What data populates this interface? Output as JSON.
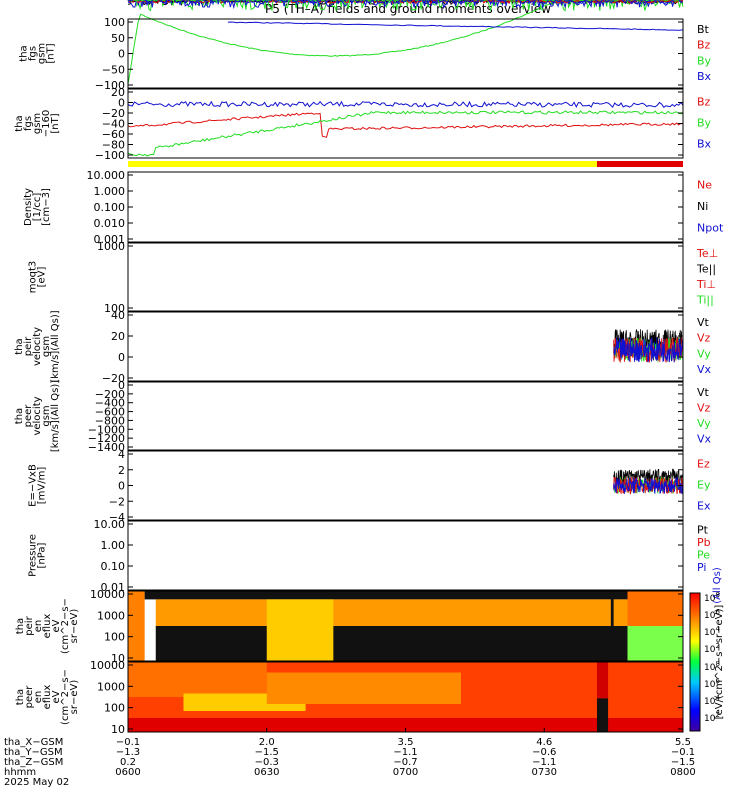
{
  "title": "P5 (TH–A) fields and ground moments overview",
  "colors": {
    "black": "#000000",
    "red": "#e01010",
    "green": "#22dd22",
    "blue": "#1010d0",
    "yellow": "#ffff00",
    "barred": "#e00000"
  },
  "chart_data": [
    {
      "id": "p1",
      "type": "line",
      "ylabel": [
        "tha",
        "fgs",
        "gsm",
        "[nT]"
      ],
      "yticks": [
        "100",
        "50",
        "0",
        "−50",
        "−100"
      ],
      "ylim": [
        -100,
        100
      ],
      "legend": [
        {
          "label": "Bt",
          "color": "black"
        },
        {
          "label": "Bz",
          "color": "red"
        },
        {
          "label": "By",
          "color": "green"
        },
        {
          "label": "Bx",
          "color": "blue"
        }
      ]
    },
    {
      "id": "p2",
      "type": "line",
      "ylabel": [
        "tha",
        "fgs",
        "gsm",
        "−160",
        "[nT]"
      ],
      "yticks": [
        "20",
        "0",
        "−20",
        "−40",
        "−60",
        "−80",
        "−100"
      ],
      "ylim": [
        -110,
        25
      ],
      "legend": [
        {
          "label": "Bz",
          "color": "red"
        },
        {
          "label": "By",
          "color": "green"
        },
        {
          "label": "Bx",
          "color": "blue"
        }
      ]
    },
    {
      "id": "p3",
      "type": "line",
      "ylabel": [
        "Density",
        "[1/cc]",
        "[cm−3]"
      ],
      "yticks": [
        "10.000",
        "1.000",
        "0.100",
        "0.010",
        "0.001"
      ],
      "scale": "log",
      "legend": [
        {
          "label": "Ne",
          "color": "red"
        },
        {
          "label": "Ni",
          "color": "black"
        },
        {
          "label": "Npot",
          "color": "blue"
        }
      ]
    },
    {
      "id": "p4",
      "type": "line",
      "ylabel": [
        "moqt3",
        "[eV]"
      ],
      "yticks": [
        "1000",
        "100"
      ],
      "scale": "log",
      "legend": [
        {
          "label": "Te⊥",
          "color": "red"
        },
        {
          "label": "Te||",
          "color": "black"
        },
        {
          "label": "Ti⊥",
          "color": "red"
        },
        {
          "label": "Ti||",
          "color": "green"
        }
      ]
    },
    {
      "id": "p5",
      "type": "line",
      "ylabel": [
        "tha",
        "peir",
        "velocity",
        "gsm",
        "[km/s](All Qs)]"
      ],
      "yticks": [
        "40",
        "20",
        "0",
        "−20"
      ],
      "ylim": [
        -40,
        40
      ],
      "legend": [
        {
          "label": "Vt",
          "color": "black"
        },
        {
          "label": "Vz",
          "color": "red"
        },
        {
          "label": "Vy",
          "color": "green"
        },
        {
          "label": "Vx",
          "color": "blue"
        }
      ]
    },
    {
      "id": "p6",
      "type": "line",
      "ylabel": [
        "tha",
        "peer",
        "velocity",
        "gsm",
        "[km/s](All Qs)]"
      ],
      "yticks": [
        "0",
        "−200",
        "−400",
        "−600",
        "−800",
        "−1000",
        "−1200",
        "−1400"
      ],
      "ylim": [
        -1400,
        0
      ],
      "legend": [
        {
          "label": "Vt",
          "color": "black"
        },
        {
          "label": "Vz",
          "color": "red"
        },
        {
          "label": "Vy",
          "color": "green"
        },
        {
          "label": "Vx",
          "color": "blue"
        }
      ]
    },
    {
      "id": "p7",
      "type": "line",
      "ylabel": [
        "E=−VxB",
        "[mV/m]"
      ],
      "yticks": [
        "4",
        "2",
        "0",
        "−2",
        "−4"
      ],
      "ylim": [
        -4,
        4
      ],
      "legend": [
        {
          "label": "Ez",
          "color": "red"
        },
        {
          "label": "Ey",
          "color": "green"
        },
        {
          "label": "Ex",
          "color": "blue"
        }
      ]
    },
    {
      "id": "p8",
      "type": "line",
      "ylabel": [
        "Pressure",
        "[nPa]"
      ],
      "yticks": [
        "10.00",
        "1.00",
        "0.10",
        "0.01"
      ],
      "scale": "log",
      "legend": [
        {
          "label": "Pt",
          "color": "black"
        },
        {
          "label": "Pb",
          "color": "red"
        },
        {
          "label": "Pe",
          "color": "green"
        },
        {
          "label": "Pi",
          "color": "blue"
        },
        {
          "label": "(All Qs)",
          "color": "blue"
        }
      ]
    },
    {
      "id": "p9",
      "type": "heatmap",
      "ylabel": [
        "tha",
        "peir",
        "en",
        "eflux",
        "eV",
        "(cm^2−s−",
        "sr−eV)"
      ],
      "yticks": [
        "10000",
        "1000",
        "100",
        "10"
      ],
      "scale": "log"
    },
    {
      "id": "p10",
      "type": "heatmap",
      "ylabel": [
        "tha",
        "peer",
        "en",
        "eflux",
        "eV",
        "(cm^2−s−",
        "sr−eV)"
      ],
      "yticks": [
        "10000",
        "1000",
        "100",
        "10"
      ],
      "scale": "log"
    }
  ],
  "colorbar": {
    "ticks": [
      "10^8",
      "10^6",
      "10^4",
      "10^2"
    ],
    "label": "[eV/(cm^2−s−sr−eV)]"
  },
  "xaxis": {
    "row_labels": [
      "tha_X−GSM",
      "tha_Y−GSM",
      "tha_Z−GSM",
      "hhmm",
      "2025 May 02"
    ],
    "columns": [
      {
        "x": "−0.1",
        "y": "−1.3",
        "z": "0.2",
        "t": "0600"
      },
      {
        "x": "2.0",
        "y": "−1.5",
        "z": "−0.3",
        "t": "0630"
      },
      {
        "x": "3.5",
        "y": "−1.1",
        "z": "−0.7",
        "t": "0700"
      },
      {
        "x": "4.6",
        "y": "−0.6",
        "z": "−1.1",
        "t": "0730"
      },
      {
        "x": "5.5",
        "y": "−0.1",
        "z": "−1.5",
        "t": "0800"
      }
    ]
  }
}
